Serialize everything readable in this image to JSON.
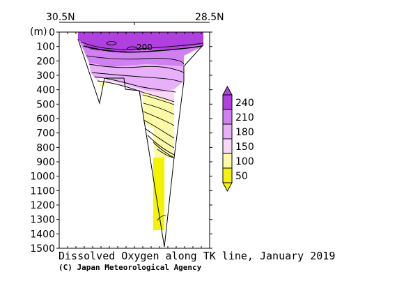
{
  "chart_data": {
    "type": "heatmap",
    "title": "Dissolved Oxygen along TK line, January 2019",
    "credit": "(C) Japan Meteorological Agency",
    "y_unit_label": "(m)",
    "x_labels": {
      "left": "30.5N",
      "right": "28.5N"
    },
    "y_ticks": [
      0,
      100,
      200,
      300,
      400,
      500,
      600,
      700,
      800,
      900,
      1000,
      1100,
      1200,
      1300,
      1400,
      1500
    ],
    "ylim": [
      0,
      1500
    ],
    "y_inverted": true,
    "contour_labels": [
      {
        "value": "200"
      }
    ],
    "colorbar": {
      "labels": [
        "240",
        "210",
        "180",
        "150",
        "100",
        "50"
      ],
      "colors": [
        "#b040e0",
        "#d080f0",
        "#e8b0f8",
        "#f8d8f8",
        "#fafaa8",
        "#f4f400"
      ]
    }
  },
  "colors": {
    "purple_dark": "#b040e0",
    "purple": "#d080f0",
    "lavender": "#e8b0f8",
    "pink_light": "#f8d8f8",
    "yellow_light": "#fafaa8",
    "yellow": "#f4f400"
  }
}
